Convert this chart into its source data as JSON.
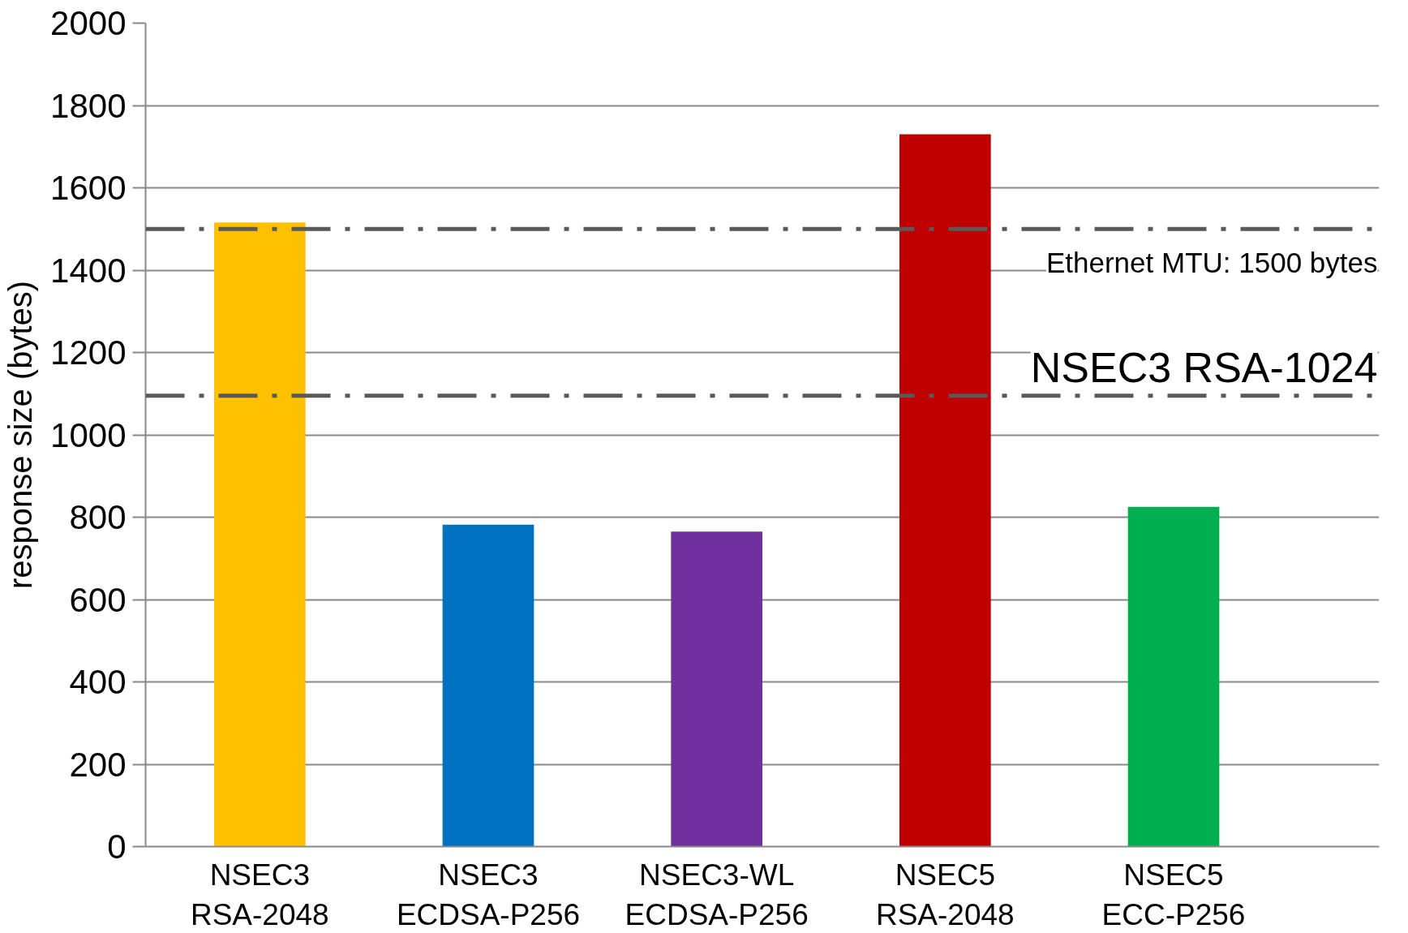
{
  "chart_data": {
    "type": "bar",
    "ylabel": "response size (bytes)",
    "categories": [
      "NSEC3\nRSA-2048",
      "NSEC3\nECDSA-P256",
      "NSEC3-WL\nECDSA-P256",
      "NSEC5\nRSA-2048",
      "NSEC5\nECC-P256"
    ],
    "values": [
      1516,
      782,
      765,
      1730,
      825
    ],
    "colors": [
      "#ffc000",
      "#0070c0",
      "#7030a0",
      "#c00000",
      "#00b050"
    ],
    "ylim": [
      0,
      2000
    ],
    "yticks": [
      0,
      200,
      400,
      600,
      800,
      1000,
      1200,
      1400,
      1600,
      1800,
      2000
    ],
    "grid": "y",
    "ref_lines": [
      {
        "axis": "y",
        "value": 1500,
        "label": "Ethernet MTU: 1500 bytes",
        "color": "#595959",
        "line_style": "dashdot"
      },
      {
        "axis": "y",
        "value": 1095,
        "label": "NSEC3 RSA-1024",
        "color": "#595959",
        "line_style": "dashdot"
      }
    ]
  }
}
